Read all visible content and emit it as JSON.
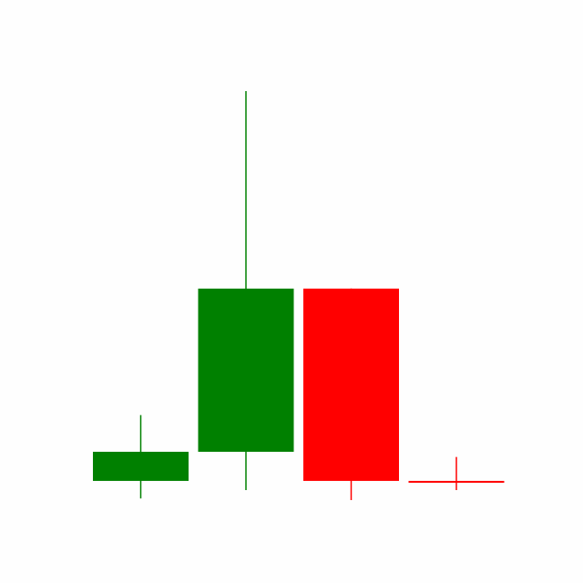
{
  "chart_data": {
    "type": "candlestick",
    "title": "",
    "xlabel": "",
    "ylabel": "",
    "axes_visible": false,
    "grid": false,
    "legend": "none",
    "ylim": [
      0,
      100
    ],
    "colors": {
      "up": "#008000",
      "down": "#ff0000",
      "background": "#fefefe"
    },
    "candles": [
      {
        "open": 2.3,
        "high": 18.8,
        "low": -2.1,
        "close": 9.6,
        "direction": "up"
      },
      {
        "open": 9.6,
        "high": 100.0,
        "low": 0.0,
        "close": 50.5,
        "direction": "up"
      },
      {
        "open": 50.5,
        "high": 50.5,
        "low": -2.5,
        "close": 2.3,
        "direction": "down"
      },
      {
        "open": 2.3,
        "high": 8.3,
        "low": 0.0,
        "close": 2.3,
        "direction": "down"
      }
    ]
  }
}
